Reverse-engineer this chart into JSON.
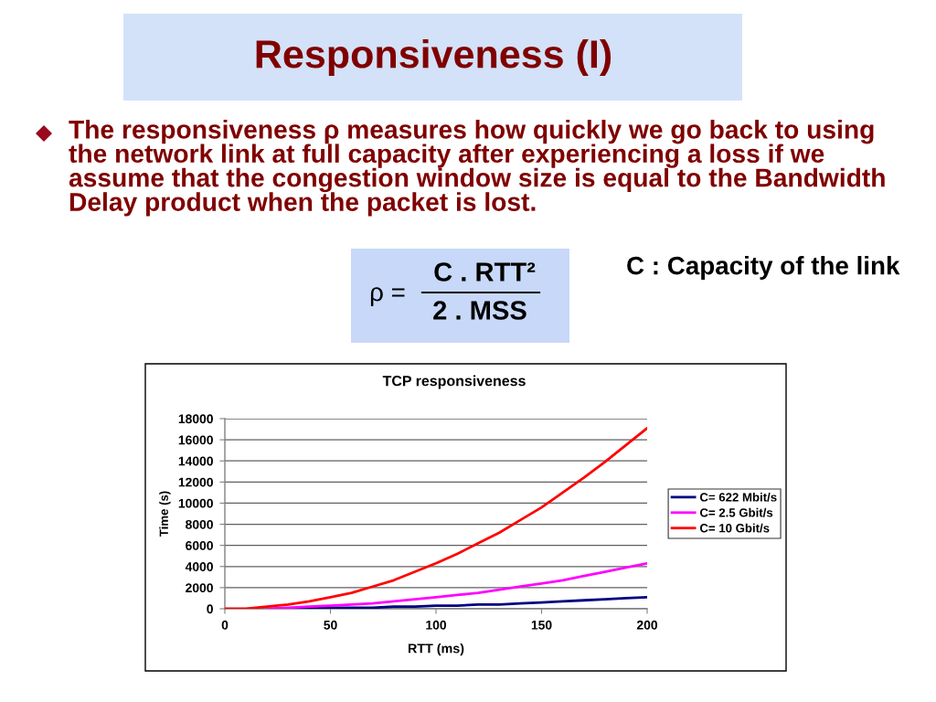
{
  "chart_data": {
    "type": "line",
    "title": "Responsiveness (I)",
    "subtitle": "TCP responsiveness",
    "xlabel": "RTT (ms)",
    "ylabel": "Time (s)",
    "annotations": [
      "The responsiveness ρ measures how quickly we go back to using\nthe network link at full capacity after experiencing a loss if we\nassume that the congestion window size is equal to the Bandwidth\nDelay product when the packet is lost.",
      "ρ =",
      "C . RTT²",
      "2 . MSS",
      "C : Capacity of the link"
    ],
    "x": [
      0,
      10,
      20,
      30,
      40,
      50,
      60,
      70,
      80,
      90,
      100,
      110,
      120,
      130,
      140,
      150,
      160,
      170,
      180,
      190,
      200
    ],
    "series": [
      {
        "name": "C= 622 Mbit/s",
        "color": "#000080",
        "values": [
          null,
          null,
          null,
          0,
          0,
          100,
          100,
          100,
          200,
          200,
          300,
          300,
          400,
          400,
          500,
          600,
          700,
          800,
          900,
          1000,
          1100
        ]
      },
      {
        "name": "C= 2.5 Gbit/s",
        "color": "#ff00ff",
        "values": [
          null,
          null,
          0,
          100,
          200,
          300,
          400,
          500,
          700,
          900,
          1100,
          1300,
          1500,
          1800,
          2100,
          2400,
          2700,
          3100,
          3500,
          3900,
          4300
        ]
      },
      {
        "name": "C= 10 Gbit/s",
        "color": "#ff0000",
        "values": [
          0,
          0,
          200,
          400,
          700,
          1100,
          1500,
          2100,
          2700,
          3500,
          4300,
          5200,
          6200,
          7200,
          8400,
          9600,
          11000,
          12400,
          13900,
          15500,
          17100
        ]
      }
    ],
    "xlim": [
      0,
      200
    ],
    "ylim": [
      0,
      18000
    ],
    "xticks": [
      0,
      50,
      100,
      150,
      200
    ],
    "yticks": [
      0,
      2000,
      4000,
      6000,
      8000,
      10000,
      12000,
      14000,
      16000,
      18000
    ],
    "grid": "y",
    "legend": "right"
  }
}
